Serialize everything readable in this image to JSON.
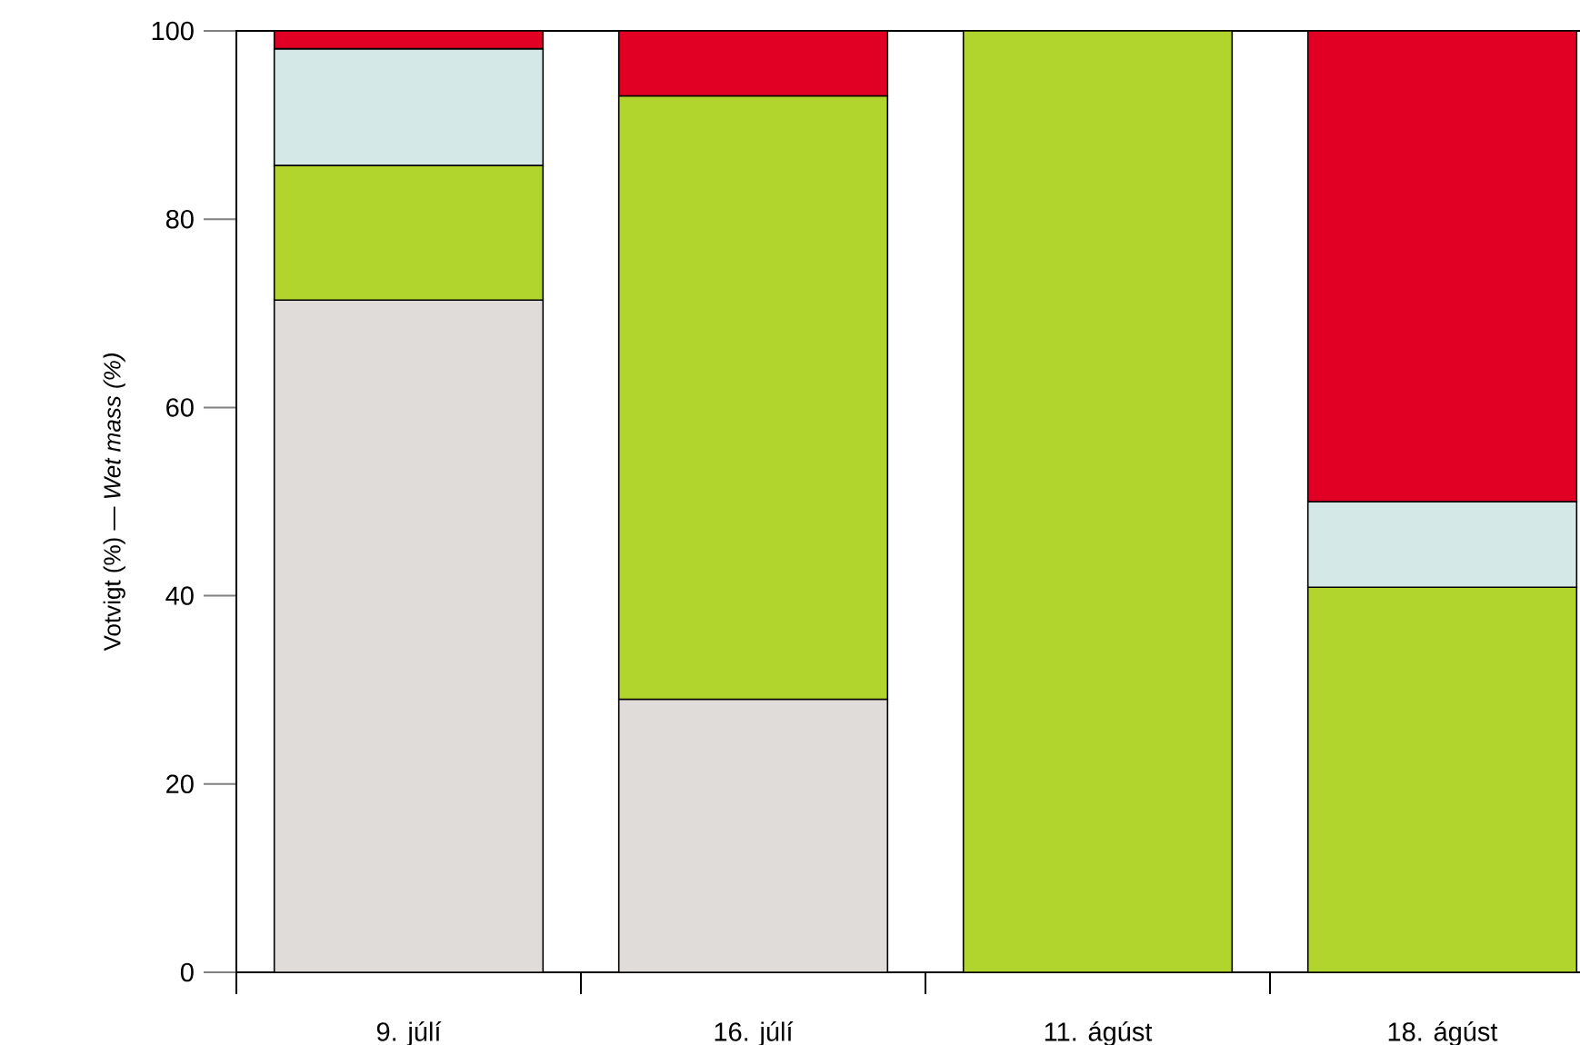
{
  "chart_data": {
    "type": "bar",
    "stacked": true,
    "ylabel": "Votvigt (%) — *Wet mass (%)*",
    "categories": [
      "9. júlí",
      "16. júlí",
      "11. ágúst",
      "18. ágúst"
    ],
    "series": [
      {
        "color": "#e0dcd9",
        "values": [
          71.4,
          29.0,
          null,
          null
        ]
      },
      {
        "color": "#b2d52d",
        "values": [
          14.3,
          64.1,
          100,
          40.9
        ]
      },
      {
        "color": "#d4e8e7",
        "values": [
          12.4,
          null,
          null,
          9.1
        ]
      },
      {
        "color": "#e10024",
        "values": [
          1.9,
          6.9,
          null,
          50.0
        ]
      }
    ],
    "ylim": [
      0,
      100
    ],
    "yticks": [
      0,
      20,
      40,
      60,
      80,
      100
    ]
  }
}
